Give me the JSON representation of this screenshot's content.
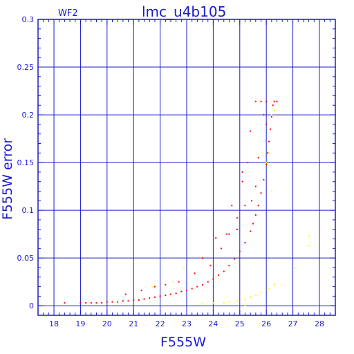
{
  "chart_data": {
    "type": "scatter",
    "title": "lmc_u4b105",
    "chip_label": "WF2",
    "xlabel": "F555W",
    "ylabel": "F555W error",
    "xlim": [
      17.4,
      28.6
    ],
    "ylim": [
      -0.01,
      0.3
    ],
    "xticks": [
      18,
      19,
      20,
      21,
      22,
      23,
      24,
      25,
      26,
      27,
      28
    ],
    "yticks": [
      0,
      0.05,
      0.1,
      0.15,
      0.2,
      0.25,
      0.3
    ],
    "ytick_labels": [
      "0",
      "0.05",
      "0.1",
      "0.15",
      "0.2",
      "0.25",
      "0.3"
    ],
    "grid": true,
    "colors": {
      "axes": "#1a1acc",
      "primary": "#ff0000",
      "secondary": "#ffff00"
    },
    "series": [
      {
        "color": "#ff0000",
        "points": [
          [
            18.4,
            0.003
          ],
          [
            19.0,
            0.003
          ],
          [
            19.2,
            0.003
          ],
          [
            19.4,
            0.003
          ],
          [
            19.6,
            0.003
          ],
          [
            19.8,
            0.003
          ],
          [
            20.0,
            0.004
          ],
          [
            20.2,
            0.004
          ],
          [
            20.4,
            0.004
          ],
          [
            20.6,
            0.005
          ],
          [
            20.8,
            0.005
          ],
          [
            21.0,
            0.006
          ],
          [
            21.2,
            0.006
          ],
          [
            21.4,
            0.007
          ],
          [
            21.6,
            0.008
          ],
          [
            21.8,
            0.009
          ],
          [
            22.0,
            0.01
          ],
          [
            22.2,
            0.011
          ],
          [
            22.4,
            0.012
          ],
          [
            22.6,
            0.013
          ],
          [
            22.8,
            0.015
          ],
          [
            23.0,
            0.016
          ],
          [
            23.2,
            0.018
          ],
          [
            23.4,
            0.02
          ],
          [
            23.6,
            0.022
          ],
          [
            23.8,
            0.025
          ],
          [
            24.0,
            0.028
          ],
          [
            24.2,
            0.032
          ],
          [
            24.4,
            0.036
          ],
          [
            24.6,
            0.042
          ],
          [
            24.8,
            0.049
          ],
          [
            25.0,
            0.057
          ],
          [
            25.2,
            0.066
          ],
          [
            25.4,
            0.078
          ],
          [
            25.5,
            0.086
          ],
          [
            25.6,
            0.095
          ],
          [
            25.7,
            0.105
          ],
          [
            25.8,
            0.118
          ],
          [
            25.9,
            0.132
          ],
          [
            26.0,
            0.148
          ],
          [
            26.05,
            0.16
          ],
          [
            26.1,
            0.172
          ],
          [
            26.15,
            0.185
          ],
          [
            26.2,
            0.198
          ],
          [
            26.25,
            0.21
          ],
          [
            26.3,
            0.214
          ],
          [
            26.4,
            0.214
          ],
          [
            26.0,
            0.214
          ],
          [
            25.8,
            0.214
          ],
          [
            25.6,
            0.214
          ],
          [
            25.4,
            0.183
          ],
          [
            25.3,
            0.15
          ],
          [
            25.1,
            0.13
          ],
          [
            24.9,
            0.08
          ],
          [
            24.6,
            0.075
          ],
          [
            24.3,
            0.06
          ],
          [
            24.1,
            0.071
          ],
          [
            23.9,
            0.042
          ],
          [
            23.6,
            0.05
          ],
          [
            23.3,
            0.034
          ],
          [
            22.7,
            0.025
          ],
          [
            22.2,
            0.022
          ],
          [
            21.8,
            0.02
          ],
          [
            21.3,
            0.016
          ],
          [
            20.7,
            0.012
          ],
          [
            25.1,
            0.14
          ],
          [
            25.6,
            0.125
          ],
          [
            25.2,
            0.105
          ],
          [
            24.7,
            0.105
          ],
          [
            24.5,
            0.075
          ],
          [
            24.9,
            0.092
          ],
          [
            25.45,
            0.11
          ],
          [
            25.7,
            0.155
          ],
          [
            25.9,
            0.2
          ],
          [
            26.0,
            0.19
          ]
        ]
      },
      {
        "color": "#ffff00",
        "points": [
          [
            21.7,
            0.02
          ],
          [
            22.5,
            0.025
          ],
          [
            23.6,
            0.002
          ],
          [
            24.0,
            0.003
          ],
          [
            24.4,
            0.003
          ],
          [
            24.6,
            0.004
          ],
          [
            24.9,
            0.005
          ],
          [
            25.2,
            0.007
          ],
          [
            25.4,
            0.009
          ],
          [
            25.6,
            0.011
          ],
          [
            25.8,
            0.014
          ],
          [
            26.1,
            0.018
          ],
          [
            26.3,
            0.022
          ],
          [
            27.1,
            0.04
          ],
          [
            27.6,
            0.063
          ],
          [
            27.6,
            0.073
          ],
          [
            26.2,
            0.2
          ],
          [
            26.1,
            0.16
          ],
          [
            26.0,
            0.15
          ],
          [
            26.3,
            0.205
          ],
          [
            22.9,
            0.04
          ],
          [
            24.1,
            0.03
          ],
          [
            25.2,
            0.0
          ],
          [
            26.2,
            0.12
          ]
        ]
      }
    ]
  }
}
